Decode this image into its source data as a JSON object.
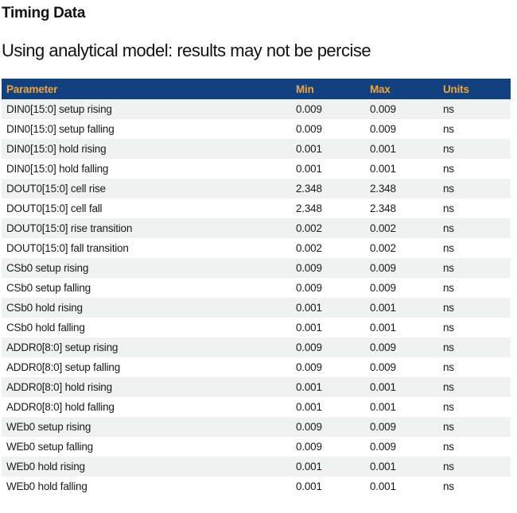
{
  "page": {
    "title": "Timing Data",
    "subtitle": "Using analytical model: results may not be percise"
  },
  "table": {
    "columns": [
      {
        "key": "parameter",
        "label": "Parameter"
      },
      {
        "key": "min",
        "label": "Min"
      },
      {
        "key": "max",
        "label": "Max"
      },
      {
        "key": "units",
        "label": "Units"
      }
    ],
    "rows": [
      {
        "parameter": "DIN0[15:0] setup rising",
        "min": "0.009",
        "max": "0.009",
        "units": "ns"
      },
      {
        "parameter": "DIN0[15:0] setup falling",
        "min": "0.009",
        "max": "0.009",
        "units": "ns"
      },
      {
        "parameter": "DIN0[15:0] hold rising",
        "min": "0.001",
        "max": "0.001",
        "units": "ns"
      },
      {
        "parameter": "DIN0[15:0] hold falling",
        "min": "0.001",
        "max": "0.001",
        "units": "ns"
      },
      {
        "parameter": "DOUT0[15:0] cell rise",
        "min": "2.348",
        "max": "2.348",
        "units": "ns"
      },
      {
        "parameter": "DOUT0[15:0] cell fall",
        "min": "2.348",
        "max": "2.348",
        "units": "ns"
      },
      {
        "parameter": "DOUT0[15:0] rise transition",
        "min": "0.002",
        "max": "0.002",
        "units": "ns"
      },
      {
        "parameter": "DOUT0[15:0] fall transition",
        "min": "0.002",
        "max": "0.002",
        "units": "ns"
      },
      {
        "parameter": "CSb0 setup rising",
        "min": "0.009",
        "max": "0.009",
        "units": "ns"
      },
      {
        "parameter": "CSb0 setup falling",
        "min": "0.009",
        "max": "0.009",
        "units": "ns"
      },
      {
        "parameter": "CSb0 hold rising",
        "min": "0.001",
        "max": "0.001",
        "units": "ns"
      },
      {
        "parameter": "CSb0 hold falling",
        "min": "0.001",
        "max": "0.001",
        "units": "ns"
      },
      {
        "parameter": "ADDR0[8:0] setup rising",
        "min": "0.009",
        "max": "0.009",
        "units": "ns"
      },
      {
        "parameter": "ADDR0[8:0] setup falling",
        "min": "0.009",
        "max": "0.009",
        "units": "ns"
      },
      {
        "parameter": "ADDR0[8:0] hold rising",
        "min": "0.001",
        "max": "0.001",
        "units": "ns"
      },
      {
        "parameter": "ADDR0[8:0] hold falling",
        "min": "0.001",
        "max": "0.001",
        "units": "ns"
      },
      {
        "parameter": "WEb0 setup rising",
        "min": "0.009",
        "max": "0.009",
        "units": "ns"
      },
      {
        "parameter": "WEb0 setup falling",
        "min": "0.009",
        "max": "0.009",
        "units": "ns"
      },
      {
        "parameter": "WEb0 hold rising",
        "min": "0.001",
        "max": "0.001",
        "units": "ns"
      },
      {
        "parameter": "WEb0 hold falling",
        "min": "0.001",
        "max": "0.001",
        "units": "ns"
      }
    ]
  },
  "colors": {
    "header_bg": "#11417f",
    "header_text": "#f0a63c",
    "stripe_bg": "#f0f1f1",
    "row_bg": "#ffffff",
    "text": "#1a1a1a"
  }
}
